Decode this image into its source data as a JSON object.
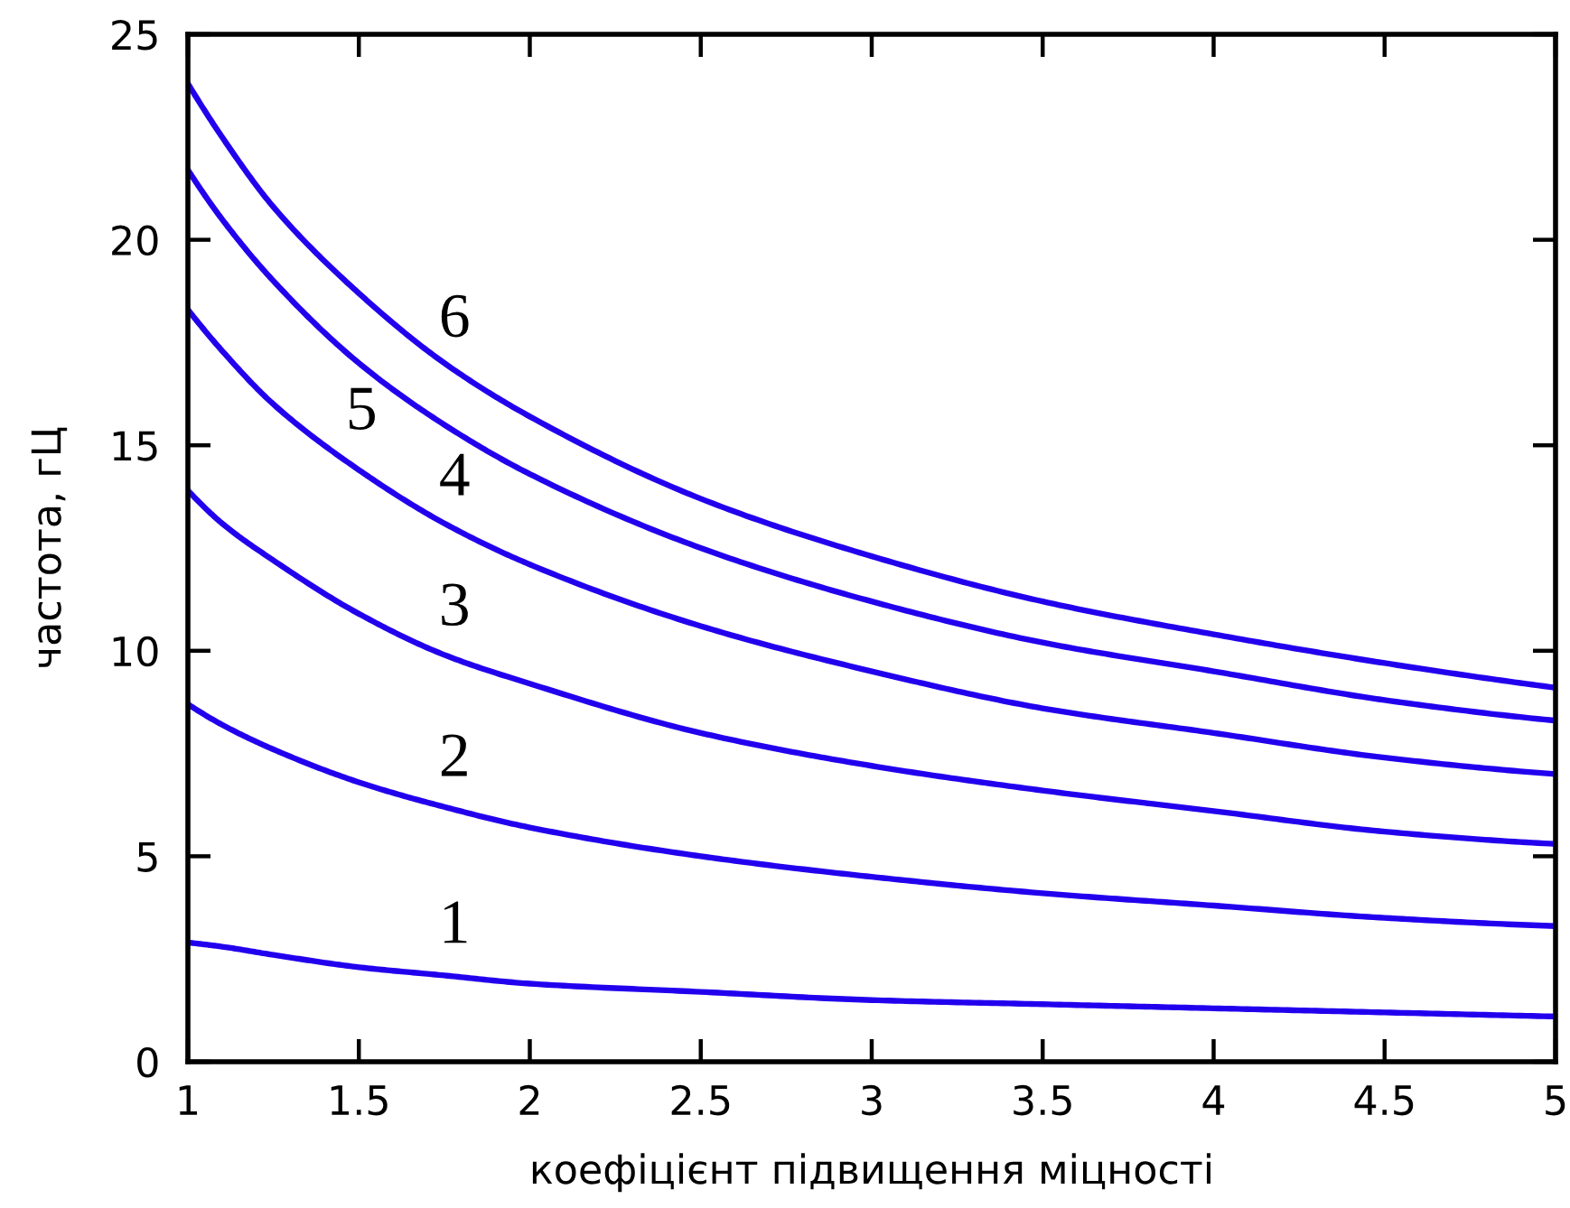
{
  "chart_data": {
    "type": "line",
    "xlabel": "коефіцієнт підвищення міцності",
    "ylabel": "частота, гЦ",
    "x": [
      1,
      1.1,
      1.25,
      1.5,
      1.75,
      2,
      2.5,
      3,
      3.5,
      4,
      4.5,
      5
    ],
    "series": [
      {
        "name": "1",
        "color": "#2200ee",
        "values": [
          2.9,
          2.8,
          2.6,
          2.3,
          2.1,
          1.9,
          1.7,
          1.5,
          1.4,
          1.3,
          1.2,
          1.1
        ]
      },
      {
        "name": "2",
        "color": "#2200ee",
        "values": [
          8.7,
          8.2,
          7.6,
          6.8,
          6.2,
          5.7,
          5.0,
          4.5,
          4.1,
          3.8,
          3.5,
          3.3
        ]
      },
      {
        "name": "3",
        "color": "#2200ee",
        "values": [
          13.9,
          13.1,
          12.2,
          10.9,
          9.9,
          9.2,
          8.0,
          7.2,
          6.6,
          6.1,
          5.6,
          5.3
        ]
      },
      {
        "name": "4",
        "color": "#2200ee",
        "values": [
          18.3,
          17.3,
          16.0,
          14.4,
          13.1,
          12.1,
          10.6,
          9.5,
          8.6,
          8.0,
          7.4,
          7.0
        ]
      },
      {
        "name": "5",
        "color": "#2200ee",
        "values": [
          21.7,
          20.5,
          19.0,
          17.0,
          15.5,
          14.3,
          12.5,
          11.2,
          10.2,
          9.5,
          8.8,
          8.3
        ]
      },
      {
        "name": "6",
        "color": "#2200ee",
        "values": [
          23.8,
          22.5,
          20.8,
          18.7,
          17.0,
          15.7,
          13.7,
          12.3,
          11.2,
          10.4,
          9.7,
          9.1
        ]
      }
    ],
    "xlim": [
      1,
      5
    ],
    "ylim": [
      0,
      25
    ],
    "xticks": [
      1,
      1.5,
      2,
      2.5,
      3,
      3.5,
      4,
      4.5,
      5
    ],
    "yticks": [
      0,
      5,
      10,
      15,
      20,
      25
    ]
  }
}
